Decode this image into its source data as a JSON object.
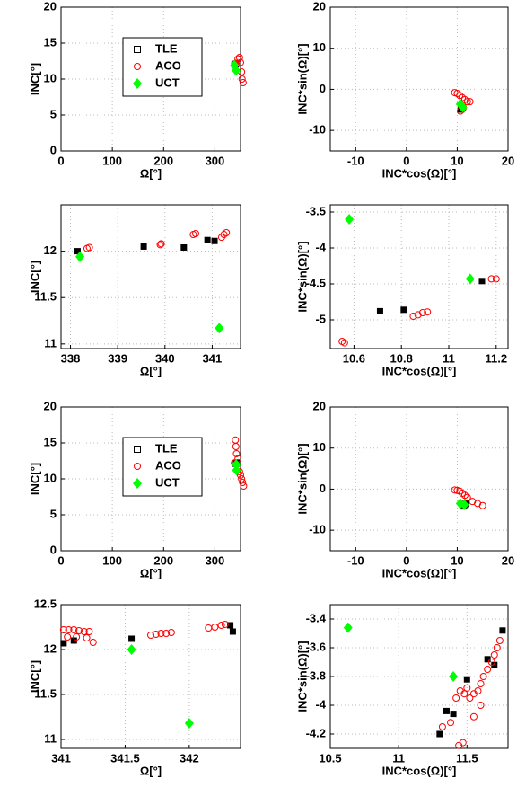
{
  "chart_data": [
    {
      "type": "scatter",
      "xlabel": "Ω[°]",
      "ylabel": "INC[°]",
      "xlim": [
        0,
        350
      ],
      "xticks": [
        0,
        100,
        200,
        300
      ],
      "ylim": [
        0,
        20
      ],
      "yticks": [
        0,
        5,
        10,
        15,
        20
      ],
      "grid": true,
      "legend": "top center",
      "series": [
        {
          "name": "TLE",
          "color": "#000000",
          "marker": "square",
          "x": [
            338.2,
            339.6,
            340.4,
            340.9,
            341.1
          ],
          "values": [
            12,
            12.05,
            12.04,
            12.12,
            12.11
          ]
        },
        {
          "name": "ACO",
          "color": "#ff0000",
          "marker": "circle",
          "x": [
            338.4,
            339.9,
            340.6,
            341.2,
            345,
            348,
            350,
            352,
            353,
            355
          ],
          "values": [
            12.03,
            12.07,
            12.18,
            12.15,
            12.8,
            13,
            12.3,
            11,
            10,
            9.5
          ]
        },
        {
          "name": "UCT",
          "color": "#00ff00",
          "marker": "diamond",
          "x": [
            338.2,
            341.2
          ],
          "values": [
            11.9,
            11.2
          ]
        }
      ]
    },
    {
      "type": "scatter",
      "xlabel": "INC*cos(Ω)[°]",
      "ylabel": "INC*sin(Ω)[°]",
      "xlim": [
        -15,
        20
      ],
      "xticks": [
        -10,
        0,
        10,
        20
      ],
      "ylim": [
        -15,
        20
      ],
      "yticks": [
        -10,
        0,
        10,
        20
      ],
      "grid": true,
      "series": [
        {
          "color": "#000000",
          "marker": "square",
          "x": [
            10.7,
            10.8,
            11.1
          ],
          "values": [
            -4.9,
            -4.9,
            -4.5
          ]
        },
        {
          "color": "#ff0000",
          "marker": "circle",
          "x": [
            9.5,
            10,
            10.5,
            11,
            11.5,
            12,
            12.5,
            10.6,
            11.2
          ],
          "values": [
            -0.8,
            -1,
            -1.5,
            -2,
            -2.5,
            -3,
            -3,
            -5.3,
            -4.4
          ]
        },
        {
          "color": "#00ff00",
          "marker": "diamond",
          "x": [
            10.6,
            11.1
          ],
          "values": [
            -3.6,
            -4.4
          ]
        }
      ]
    },
    {
      "type": "scatter",
      "xlabel": "Ω[°]",
      "ylabel": "INC[°]",
      "xlim": [
        337.8,
        341.6
      ],
      "xticks": [
        338,
        339,
        340,
        341
      ],
      "ylim": [
        10.95,
        12.5
      ],
      "yticks": [
        11,
        11.5,
        12
      ],
      "grid": true,
      "series": [
        {
          "color": "#000000",
          "marker": "square",
          "x": [
            338.15,
            339.55,
            340.4,
            340.9,
            341.05
          ],
          "values": [
            12,
            12.05,
            12.04,
            12.12,
            12.11
          ]
        },
        {
          "color": "#ff0000",
          "marker": "circle",
          "x": [
            338.35,
            338.4,
            339.9,
            339.92,
            340.6,
            340.65,
            341.2,
            341.25,
            341.3
          ],
          "values": [
            12.03,
            12.04,
            12.07,
            12.08,
            12.18,
            12.19,
            12.15,
            12.18,
            12.2
          ]
        },
        {
          "color": "#00ff00",
          "marker": "diamond",
          "x": [
            338.2,
            341.15
          ],
          "values": [
            11.94,
            11.17
          ]
        }
      ]
    },
    {
      "type": "scatter",
      "xlabel": "INC*cos(Ω)[°]",
      "ylabel": "INC*sin(Ω)[°]",
      "xlim": [
        10.5,
        11.25
      ],
      "xticks": [
        10.6,
        10.8,
        11,
        11.2
      ],
      "ylim": [
        -5.4,
        -3.4
      ],
      "yticks": [
        -5,
        -4.5,
        -4,
        -3.5
      ],
      "grid": true,
      "series": [
        {
          "color": "#000000",
          "marker": "square",
          "x": [
            10.71,
            10.81,
            11.14
          ],
          "values": [
            -4.88,
            -4.86,
            -4.46
          ]
        },
        {
          "color": "#ff0000",
          "marker": "circle",
          "x": [
            10.55,
            10.56,
            10.85,
            10.87,
            10.89,
            10.91,
            11.18,
            11.2
          ],
          "values": [
            -5.3,
            -5.32,
            -4.95,
            -4.93,
            -4.9,
            -4.89,
            -4.43,
            -4.43
          ]
        },
        {
          "color": "#00ff00",
          "marker": "diamond",
          "x": [
            10.58,
            11.09
          ],
          "values": [
            -3.6,
            -4.43
          ]
        }
      ]
    },
    {
      "type": "scatter",
      "xlabel": "Ω[°]",
      "ylabel": "INC[°]",
      "xlim": [
        0,
        350
      ],
      "xticks": [
        0,
        100,
        200,
        300
      ],
      "ylim": [
        0,
        20
      ],
      "yticks": [
        0,
        5,
        10,
        15,
        20
      ],
      "grid": true,
      "legend": "top center",
      "series": [
        {
          "name": "TLE",
          "color": "#000000",
          "marker": "square",
          "x": [
            341,
            341.5,
            342.3
          ],
          "values": [
            12.07,
            12.12,
            12.27
          ]
        },
        {
          "name": "ACO",
          "color": "#ff0000",
          "marker": "circle",
          "x": [
            338,
            340,
            341,
            342,
            345,
            348,
            350,
            352,
            354,
            356
          ],
          "values": [
            12.2,
            15.4,
            14.5,
            13.5,
            12.8,
            11,
            10.5,
            10,
            9.5,
            9
          ]
        },
        {
          "name": "UCT",
          "color": "#00ff00",
          "marker": "diamond",
          "x": [
            341.5,
            342
          ],
          "values": [
            12,
            11.2
          ]
        }
      ]
    },
    {
      "type": "scatter",
      "xlabel": "INC*cos(Ω)[°]",
      "ylabel": "INC*sin(Ω)[°]",
      "xlim": [
        -15,
        20
      ],
      "xticks": [
        -10,
        0,
        10,
        20
      ],
      "ylim": [
        -15,
        20
      ],
      "yticks": [
        -10,
        0,
        10,
        20
      ],
      "grid": true,
      "series": [
        {
          "color": "#000000",
          "marker": "square",
          "x": [
            11.3,
            11.5,
            11.7
          ],
          "values": [
            -4.2,
            -3.8,
            -3.5
          ]
        },
        {
          "color": "#ff0000",
          "marker": "circle",
          "x": [
            9.5,
            10,
            10.5,
            11,
            11.5,
            12,
            13,
            14,
            15
          ],
          "values": [
            -0.2,
            -0.3,
            -0.5,
            -1,
            -1.5,
            -2,
            -3,
            -3.5,
            -4
          ]
        },
        {
          "color": "#00ff00",
          "marker": "diamond",
          "x": [
            10.6,
            11.4
          ],
          "values": [
            -3.5,
            -3.8
          ]
        }
      ]
    },
    {
      "type": "scatter",
      "xlabel": "Ω[°]",
      "ylabel": "INC[°]",
      "xlim": [
        341,
        342.4
      ],
      "xticks": [
        341,
        341.5,
        342
      ],
      "ylim": [
        10.9,
        12.5
      ],
      "yticks": [
        11,
        11.5,
        12,
        12.5
      ],
      "grid": true,
      "series": [
        {
          "color": "#000000",
          "marker": "square",
          "x": [
            341.02,
            341.1,
            341.55,
            342.32,
            342.34
          ],
          "values": [
            12.07,
            12.1,
            12.12,
            12.27,
            12.2
          ]
        },
        {
          "color": "#ff0000",
          "marker": "circle",
          "x": [
            341.02,
            341.06,
            341.1,
            341.14,
            341.18,
            341.22,
            341.05,
            341.12,
            341.2,
            341.25,
            341.7,
            341.74,
            341.78,
            341.82,
            341.86,
            342.15,
            342.2,
            342.25,
            342.28
          ],
          "values": [
            12.22,
            12.22,
            12.22,
            12.21,
            12.2,
            12.2,
            12.14,
            12.14,
            12.13,
            12.08,
            12.16,
            12.17,
            12.18,
            12.18,
            12.19,
            12.24,
            12.25,
            12.27,
            12.28
          ]
        },
        {
          "color": "#00ff00",
          "marker": "diamond",
          "x": [
            341.55,
            342
          ],
          "values": [
            12,
            11.18
          ]
        }
      ]
    },
    {
      "type": "scatter",
      "xlabel": "INC*cos(Ω)[°]",
      "ylabel": "INC*sin(Ω)[°]",
      "xlim": [
        10.5,
        11.8
      ],
      "xticks": [
        10.5,
        11,
        11.5
      ],
      "ylim": [
        -4.3,
        -3.3
      ],
      "yticks": [
        -4.2,
        -4,
        -3.8,
        -3.6,
        -3.4
      ],
      "grid": true,
      "series": [
        {
          "color": "#000000",
          "marker": "square",
          "x": [
            11.3,
            11.35,
            11.4,
            11.5,
            11.65,
            11.7,
            11.76
          ],
          "values": [
            -4.2,
            -4.04,
            -4.06,
            -3.82,
            -3.68,
            -3.72,
            -3.48
          ]
        },
        {
          "color": "#ff0000",
          "marker": "circle",
          "x": [
            11.32,
            11.38,
            11.42,
            11.45,
            11.48,
            11.5,
            11.52,
            11.55,
            11.58,
            11.6,
            11.62,
            11.65,
            11.68,
            11.7,
            11.72,
            11.74,
            11.44,
            11.47,
            11.55,
            11.6
          ],
          "values": [
            -4.15,
            -4.12,
            -3.95,
            -3.9,
            -3.92,
            -3.88,
            -3.95,
            -3.92,
            -3.9,
            -3.85,
            -3.8,
            -3.75,
            -3.7,
            -3.65,
            -3.6,
            -3.55,
            -4.28,
            -4.26,
            -4.08,
            -4.0
          ]
        },
        {
          "color": "#00ff00",
          "marker": "diamond",
          "x": [
            10.63,
            11.4
          ],
          "values": [
            -3.46,
            -3.8
          ]
        }
      ]
    }
  ]
}
